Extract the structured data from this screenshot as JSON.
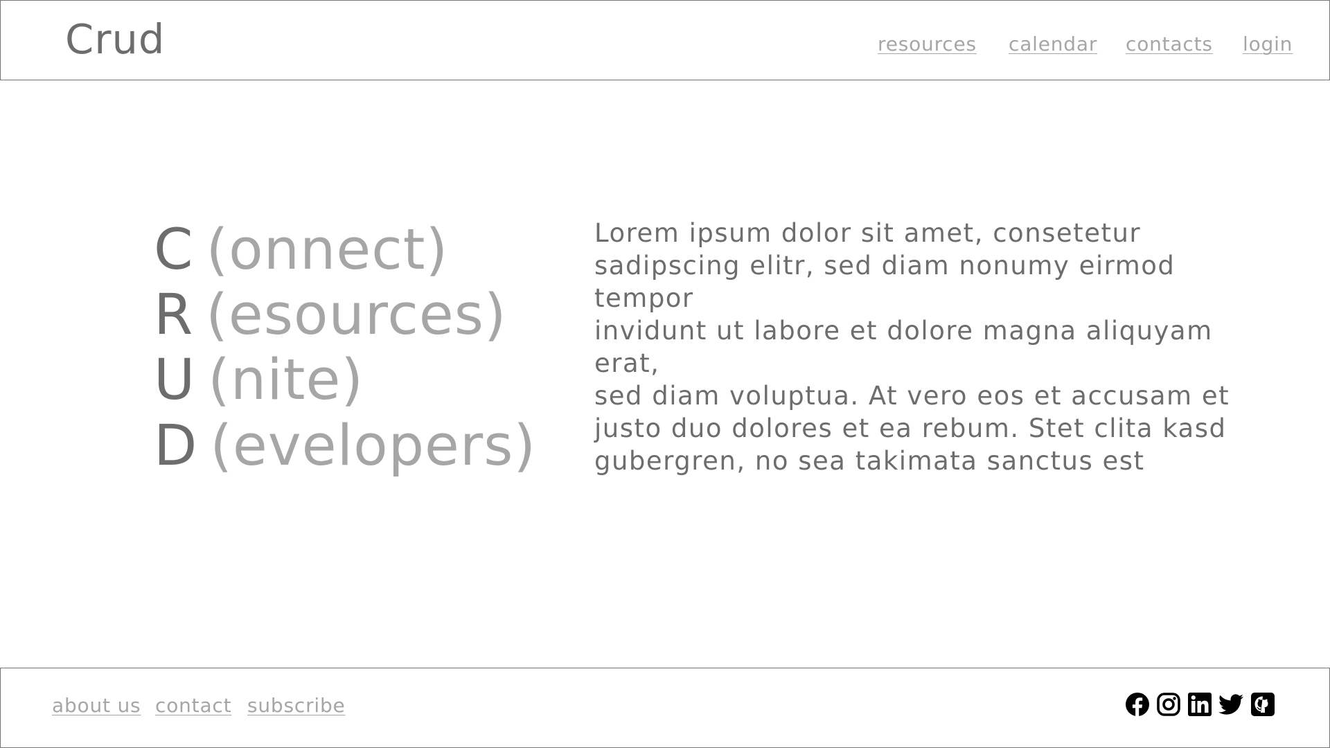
{
  "header": {
    "logo": "Crud",
    "nav": [
      {
        "label": "resources"
      },
      {
        "label": "calendar"
      },
      {
        "label": "contacts"
      },
      {
        "label": "login"
      }
    ]
  },
  "hero": {
    "acronym": [
      {
        "letter": "C",
        "rest": "(onnect)"
      },
      {
        "letter": "R",
        "rest": "(esources)"
      },
      {
        "letter": "U",
        "rest": "(nite)"
      },
      {
        "letter": "D",
        "rest": "(evelopers)"
      }
    ],
    "description_lines": [
      "Lorem ipsum dolor sit amet, consetetur",
      "sadipscing elitr, sed diam nonumy eirmod",
      "tempor",
      "invidunt ut labore et dolore magna aliquyam",
      "erat,",
      "sed diam voluptua. At vero eos et accusam et",
      "justo duo dolores et ea rebum. Stet clita kasd",
      "gubergren, no sea takimata sanctus est"
    ]
  },
  "footer": {
    "links": [
      {
        "label": "about us"
      },
      {
        "label": "contact"
      },
      {
        "label": "subscribe"
      }
    ],
    "social_icons": [
      "facebook-icon",
      "instagram-icon",
      "linkedin-icon",
      "twitter-icon",
      "github-icon"
    ]
  },
  "colors": {
    "primary_text": "#6d6d6d",
    "muted_text": "#a6a6a6",
    "border": "#757575",
    "icon": "#000000",
    "background": "#ffffff"
  }
}
